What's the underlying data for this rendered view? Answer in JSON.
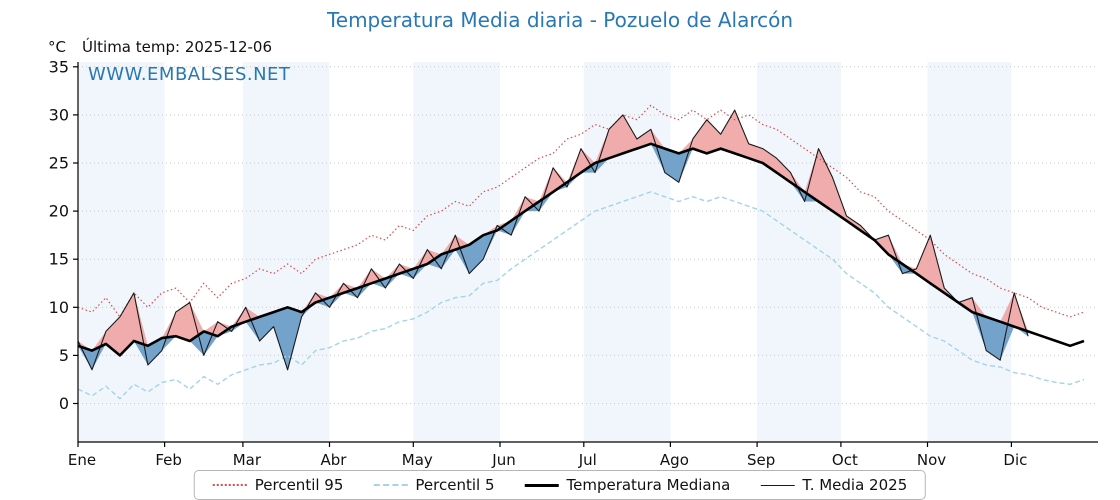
{
  "header": {
    "title": "Temperatura Media diaria - Pozuelo de Alarcón",
    "y_unit": "°C",
    "last_temp_label": "Última temp: 2025-12-06",
    "watermark": "WWW.EMBALSES.NET"
  },
  "legend": {
    "items": [
      {
        "id": "p95",
        "label": "Percentil 95"
      },
      {
        "id": "p5",
        "label": "Percentil 5"
      },
      {
        "id": "median",
        "label": "Temperatura Mediana"
      },
      {
        "id": "t2025",
        "label": "T. Media 2025"
      }
    ]
  },
  "colors": {
    "title": "#2878b5",
    "watermark": "#2878b5",
    "p95": "#dc4a4a",
    "p5": "#a6d3e8",
    "median": "#000000",
    "t2025": "#1a1a1a",
    "fill_above": "#f0a3a3",
    "fill_below": "#6b9dc8",
    "band": "#e9f2fa",
    "grid": "#c9c9c9",
    "axis": "#000000"
  },
  "chart_data": {
    "type": "line",
    "title": "Temperatura Media diaria - Pozuelo de Alarcón",
    "xlabel": "",
    "ylabel": "°C",
    "ylim": [
      -4,
      35.5
    ],
    "yticks": [
      0,
      5,
      10,
      15,
      20,
      25,
      30,
      35
    ],
    "grid": true,
    "legend_position": "bottom",
    "x_unit": "day_of_year",
    "days_in_year": 365,
    "day_step": 5,
    "months": [
      "Ene",
      "Feb",
      "Mar",
      "Abr",
      "May",
      "Jun",
      "Jul",
      "Ago",
      "Sep",
      "Oct",
      "Nov",
      "Dic"
    ],
    "month_start_days": [
      0,
      31,
      59,
      90,
      120,
      151,
      181,
      212,
      243,
      273,
      304,
      334
    ],
    "last_data_date": "2025-12-06",
    "series": [
      {
        "id": "p95",
        "name": "Percentil 95",
        "style": "dotted",
        "values": [
          10.0,
          9.5,
          11.0,
          9.0,
          11.5,
          10.0,
          11.5,
          12.0,
          10.5,
          12.5,
          11.0,
          12.5,
          13.0,
          14.0,
          13.5,
          14.5,
          13.5,
          15.0,
          15.5,
          16.0,
          16.5,
          17.5,
          17.0,
          18.5,
          18.0,
          19.5,
          20.0,
          21.0,
          20.5,
          22.0,
          22.5,
          23.5,
          24.5,
          25.5,
          26.0,
          27.5,
          28.0,
          29.0,
          28.5,
          30.0,
          29.5,
          31.0,
          30.0,
          29.5,
          30.5,
          29.5,
          30.5,
          29.5,
          30.0,
          29.0,
          28.5,
          27.5,
          26.5,
          25.5,
          24.5,
          23.5,
          22.0,
          21.5,
          20.0,
          19.0,
          18.0,
          17.0,
          15.5,
          14.5,
          13.5,
          13.0,
          12.0,
          11.5,
          11.0,
          10.0,
          9.5,
          9.0,
          9.5
        ]
      },
      {
        "id": "p5",
        "name": "Percentil 5",
        "style": "dashed",
        "values": [
          1.5,
          0.8,
          1.8,
          0.5,
          2.0,
          1.2,
          2.2,
          2.5,
          1.5,
          2.8,
          2.0,
          3.0,
          3.5,
          4.0,
          4.2,
          5.0,
          4.0,
          5.5,
          5.8,
          6.5,
          6.8,
          7.5,
          7.8,
          8.5,
          8.8,
          9.5,
          10.5,
          11.0,
          11.2,
          12.5,
          12.8,
          14.0,
          15.0,
          16.0,
          17.0,
          18.0,
          19.0,
          20.0,
          20.5,
          21.0,
          21.5,
          22.0,
          21.5,
          21.0,
          21.5,
          21.0,
          21.5,
          21.0,
          20.5,
          20.0,
          19.0,
          18.0,
          17.0,
          16.0,
          15.0,
          13.5,
          12.5,
          11.5,
          10.0,
          9.0,
          8.0,
          7.0,
          6.5,
          5.5,
          4.5,
          4.0,
          3.8,
          3.2,
          3.0,
          2.5,
          2.2,
          2.0,
          2.5
        ]
      },
      {
        "id": "median",
        "name": "Temperatura Mediana",
        "style": "solid-thick",
        "values": [
          6.0,
          5.5,
          6.2,
          5.0,
          6.5,
          6.0,
          6.8,
          7.0,
          6.5,
          7.5,
          7.0,
          8.0,
          8.5,
          9.0,
          9.5,
          10.0,
          9.5,
          10.5,
          11.0,
          11.5,
          12.0,
          12.5,
          13.0,
          13.5,
          14.0,
          14.5,
          15.5,
          16.0,
          16.5,
          17.5,
          18.0,
          19.0,
          20.0,
          21.0,
          22.0,
          23.0,
          24.0,
          25.0,
          25.5,
          26.0,
          26.5,
          27.0,
          26.5,
          26.0,
          26.5,
          26.0,
          26.5,
          26.0,
          25.5,
          25.0,
          24.0,
          23.0,
          22.0,
          21.0,
          20.0,
          19.0,
          18.0,
          17.0,
          15.5,
          14.5,
          13.5,
          12.5,
          11.5,
          10.5,
          9.5,
          9.0,
          8.5,
          8.0,
          7.5,
          7.0,
          6.5,
          6.0,
          6.5
        ]
      },
      {
        "id": "t2025",
        "name": "T. Media 2025",
        "style": "solid-thin",
        "values": [
          6.5,
          3.5,
          7.5,
          9.0,
          11.5,
          4.0,
          5.5,
          9.5,
          10.5,
          5.0,
          8.5,
          7.5,
          10.0,
          6.5,
          8.0,
          3.5,
          9.0,
          11.5,
          10.0,
          12.5,
          11.0,
          14.0,
          12.0,
          14.5,
          13.0,
          16.0,
          14.0,
          17.5,
          13.5,
          15.0,
          18.5,
          17.5,
          21.5,
          20.0,
          24.5,
          22.5,
          26.5,
          24.0,
          28.5,
          30.0,
          27.5,
          28.5,
          24.0,
          23.0,
          27.5,
          29.5,
          28.0,
          30.5,
          27.0,
          26.5,
          25.5,
          24.0,
          21.0,
          26.5,
          23.5,
          19.5,
          18.5,
          17.0,
          17.5,
          13.5,
          14.0,
          17.5,
          12.0,
          10.5,
          11.0,
          5.5,
          4.5,
          11.5,
          7.0
        ]
      }
    ]
  }
}
